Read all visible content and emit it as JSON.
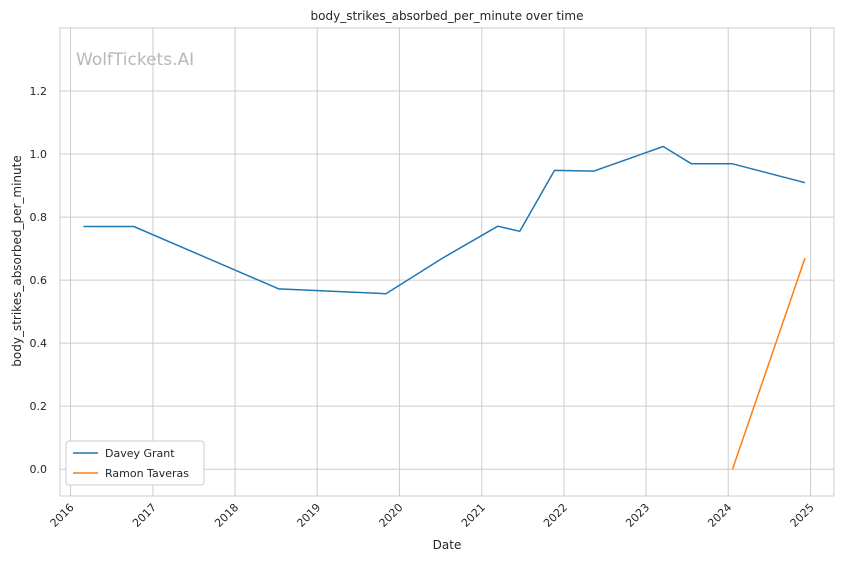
{
  "chart_data": {
    "type": "line",
    "title": "body_strikes_absorbed_per_minute over time",
    "xlabel": "Date",
    "ylabel": "body_strikes_absorbed_per_minute",
    "watermark": "WolfTickets.AI",
    "x_ticks": [
      "2016",
      "2017",
      "2018",
      "2019",
      "2020",
      "2021",
      "2022",
      "2023",
      "2024",
      "2025"
    ],
    "y_ticks": [
      "0.0",
      "0.2",
      "0.4",
      "0.6",
      "0.8",
      "1.0",
      "1.2"
    ],
    "xlim": [
      "2015-11-15",
      "2025-04-15"
    ],
    "ylim": [
      -0.085,
      1.4
    ],
    "grid": true,
    "legend_position": "lower-left",
    "series": [
      {
        "name": "Davey Grant",
        "color": "#1f77b4",
        "points": [
          {
            "x": "2016-02-27",
            "y": 0.77
          },
          {
            "x": "2016-10-08",
            "y": 0.77
          },
          {
            "x": "2018-07-14",
            "y": 0.572
          },
          {
            "x": "2019-11-02",
            "y": 0.557
          },
          {
            "x": "2020-07-11",
            "y": 0.67
          },
          {
            "x": "2021-03-13",
            "y": 0.771
          },
          {
            "x": "2021-06-19",
            "y": 0.755
          },
          {
            "x": "2021-11-20",
            "y": 0.948
          },
          {
            "x": "2022-05-14",
            "y": 0.946
          },
          {
            "x": "2023-03-18",
            "y": 1.024
          },
          {
            "x": "2023-07-22",
            "y": 0.969
          },
          {
            "x": "2024-01-20",
            "y": 0.969
          },
          {
            "x": "2024-12-07",
            "y": 0.909
          }
        ]
      },
      {
        "name": "Ramon Taveras",
        "color": "#ff7f0e",
        "points": [
          {
            "x": "2024-01-20",
            "y": 0.0
          },
          {
            "x": "2024-12-07",
            "y": 0.67
          }
        ]
      }
    ]
  }
}
